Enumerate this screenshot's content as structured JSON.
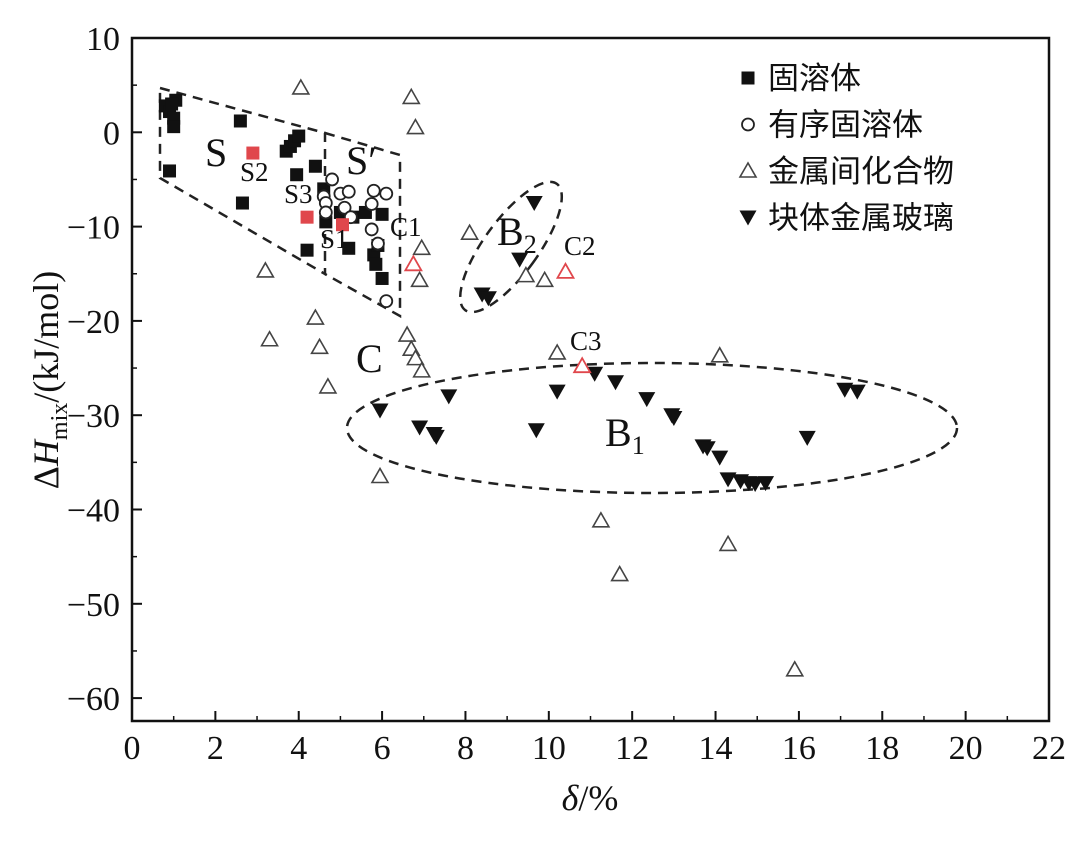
{
  "chart_data": {
    "type": "scatter",
    "xlabel": "δ/%",
    "ylabel": "ΔH_mix/(kJ/mol)",
    "xlim": [
      0,
      22
    ],
    "ylim": [
      -63,
      10
    ],
    "x_ticks": [
      "0",
      "2",
      "4",
      "6",
      "8",
      "10",
      "12",
      "14",
      "16",
      "18",
      "20",
      "22"
    ],
    "y_ticks": [
      "10",
      "0",
      "−10",
      "−20",
      "−30",
      "−40",
      "−50",
      "−60"
    ],
    "grid": false,
    "legend_position": "top-right",
    "highlight_color": "#e0474c",
    "series": [
      {
        "name": "固溶体",
        "marker": "square-filled",
        "points": [
          [
            0.8,
            2.8
          ],
          [
            0.9,
            2.2
          ],
          [
            1.0,
            1.5
          ],
          [
            1.05,
            3.4
          ],
          [
            0.95,
            3.0
          ],
          [
            1.0,
            0.6
          ],
          [
            0.9,
            -4.1
          ],
          [
            2.6,
            1.2
          ],
          [
            2.65,
            -7.5
          ],
          [
            3.7,
            -2.0
          ],
          [
            3.8,
            -1.5
          ],
          [
            3.9,
            -0.9
          ],
          [
            4.0,
            -0.4
          ],
          [
            3.95,
            -4.5
          ],
          [
            4.2,
            -12.5
          ],
          [
            4.4,
            -3.6
          ],
          [
            4.6,
            -6.0
          ],
          [
            4.65,
            -9.5
          ],
          [
            5.0,
            -8.5
          ],
          [
            5.2,
            -12.3
          ],
          [
            5.3,
            -9.0
          ],
          [
            5.6,
            -8.5
          ],
          [
            5.8,
            -13.0
          ],
          [
            5.85,
            -14.0
          ],
          [
            5.9,
            -12.0
          ],
          [
            6.0,
            -8.7
          ],
          [
            6.0,
            -15.5
          ]
        ]
      },
      {
        "name": "有序固溶体",
        "marker": "circle-open",
        "points": [
          [
            4.6,
            -6.8
          ],
          [
            4.65,
            -7.5
          ],
          [
            4.65,
            -8.5
          ],
          [
            4.8,
            -5.0
          ],
          [
            5.0,
            -6.5
          ],
          [
            5.1,
            -8.0
          ],
          [
            5.2,
            -6.3
          ],
          [
            5.25,
            -9.0
          ],
          [
            5.8,
            -6.2
          ],
          [
            5.75,
            -7.6
          ],
          [
            5.75,
            -10.3
          ],
          [
            5.9,
            -11.8
          ],
          [
            6.1,
            -6.5
          ],
          [
            6.1,
            -17.9
          ]
        ]
      },
      {
        "name": "金属间化合物",
        "marker": "triangle-open",
        "points": [
          [
            4.05,
            4.7
          ],
          [
            6.7,
            3.7
          ],
          [
            6.8,
            0.5
          ],
          [
            3.2,
            -14.7
          ],
          [
            3.3,
            -22.0
          ],
          [
            4.4,
            -19.7
          ],
          [
            4.5,
            -22.8
          ],
          [
            4.7,
            -27.0
          ],
          [
            6.95,
            -12.3
          ],
          [
            6.9,
            -15.7
          ],
          [
            6.6,
            -21.5
          ],
          [
            6.7,
            -23.0
          ],
          [
            6.8,
            -24.0
          ],
          [
            6.95,
            -25.3
          ],
          [
            5.95,
            -36.5
          ],
          [
            8.1,
            -10.7
          ],
          [
            9.45,
            -15.2
          ],
          [
            9.9,
            -15.7
          ],
          [
            10.2,
            -23.4
          ],
          [
            11.25,
            -41.2
          ],
          [
            11.7,
            -46.9
          ],
          [
            14.1,
            -23.7
          ],
          [
            14.3,
            -43.7
          ],
          [
            15.9,
            -57.0
          ]
        ]
      },
      {
        "name": "块体金属玻璃",
        "marker": "triangle-down-filled",
        "points": [
          [
            9.65,
            -7.5
          ],
          [
            9.3,
            -13.5
          ],
          [
            8.4,
            -17.2
          ],
          [
            8.55,
            -17.6
          ],
          [
            5.95,
            -29.5
          ],
          [
            6.9,
            -31.3
          ],
          [
            7.25,
            -32.0
          ],
          [
            7.3,
            -32.3
          ],
          [
            7.6,
            -28.0
          ],
          [
            9.7,
            -31.6
          ],
          [
            10.2,
            -27.5
          ],
          [
            11.1,
            -25.6
          ],
          [
            11.6,
            -26.5
          ],
          [
            12.35,
            -28.3
          ],
          [
            12.95,
            -30.0
          ],
          [
            13.0,
            -30.3
          ],
          [
            13.7,
            -33.3
          ],
          [
            13.8,
            -33.5
          ],
          [
            14.1,
            -34.5
          ],
          [
            14.3,
            -36.8
          ],
          [
            14.6,
            -37.0
          ],
          [
            14.8,
            -37.2
          ],
          [
            14.95,
            -37.3
          ],
          [
            15.2,
            -37.2
          ],
          [
            16.2,
            -32.4
          ],
          [
            17.1,
            -27.3
          ],
          [
            17.4,
            -27.5
          ]
        ]
      },
      {
        "name": "",
        "marker": "square-red",
        "points": [
          [
            2.9,
            -2.2
          ],
          [
            4.2,
            -9.0
          ],
          [
            5.05,
            -9.8
          ]
        ]
      },
      {
        "name": "",
        "marker": "triangle-red",
        "points": [
          [
            6.75,
            -14.0
          ],
          [
            10.4,
            -14.8
          ],
          [
            10.8,
            -24.8
          ]
        ]
      }
    ],
    "region_labels": [
      "S",
      "S′",
      "C",
      "B",
      "B",
      "S1",
      "S2",
      "S3",
      "C1",
      "C2",
      "C3"
    ],
    "region_subscripts": [
      "2",
      "1"
    ]
  }
}
